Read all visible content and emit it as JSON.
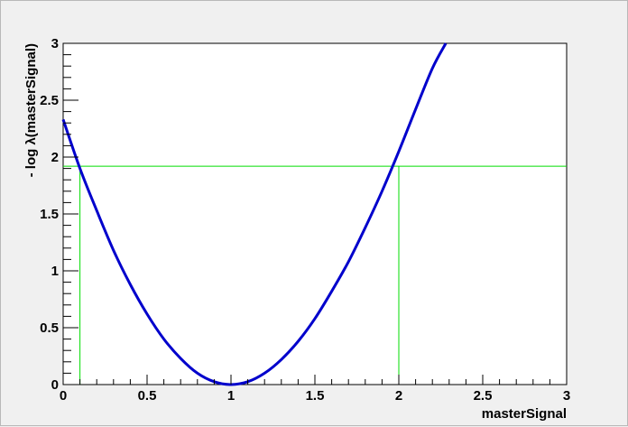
{
  "chart_data": {
    "type": "line",
    "title": "",
    "xlabel": "masterSignal",
    "ylabel": "- log λ(masterSignal)",
    "xlim": [
      0,
      3
    ],
    "ylim": [
      0,
      3
    ],
    "x_ticks": [
      "0",
      "0.5",
      "1",
      "1.5",
      "2",
      "2.5",
      "3"
    ],
    "y_ticks": [
      "0",
      "0.5",
      "1",
      "1.5",
      "2",
      "2.5",
      "3"
    ],
    "grid": false,
    "series": [
      {
        "color": "#0000cc",
        "x": [
          0,
          0.1,
          0.2,
          0.3,
          0.4,
          0.5,
          0.6,
          0.7,
          0.8,
          0.9,
          1.0,
          1.1,
          1.2,
          1.3,
          1.4,
          1.5,
          1.6,
          1.7,
          1.8,
          1.9,
          2.0,
          2.1,
          2.2,
          2.28
        ],
        "y": [
          2.33,
          1.9,
          1.53,
          1.18,
          0.88,
          0.62,
          0.4,
          0.23,
          0.1,
          0.025,
          0.0,
          0.025,
          0.1,
          0.22,
          0.38,
          0.58,
          0.82,
          1.08,
          1.38,
          1.7,
          2.05,
          2.42,
          2.78,
          3.0
        ]
      }
    ],
    "reference_lines": {
      "color": "#00dd00",
      "horizontal_y": 1.92,
      "vertical_x": [
        0.1,
        2.0
      ]
    }
  }
}
